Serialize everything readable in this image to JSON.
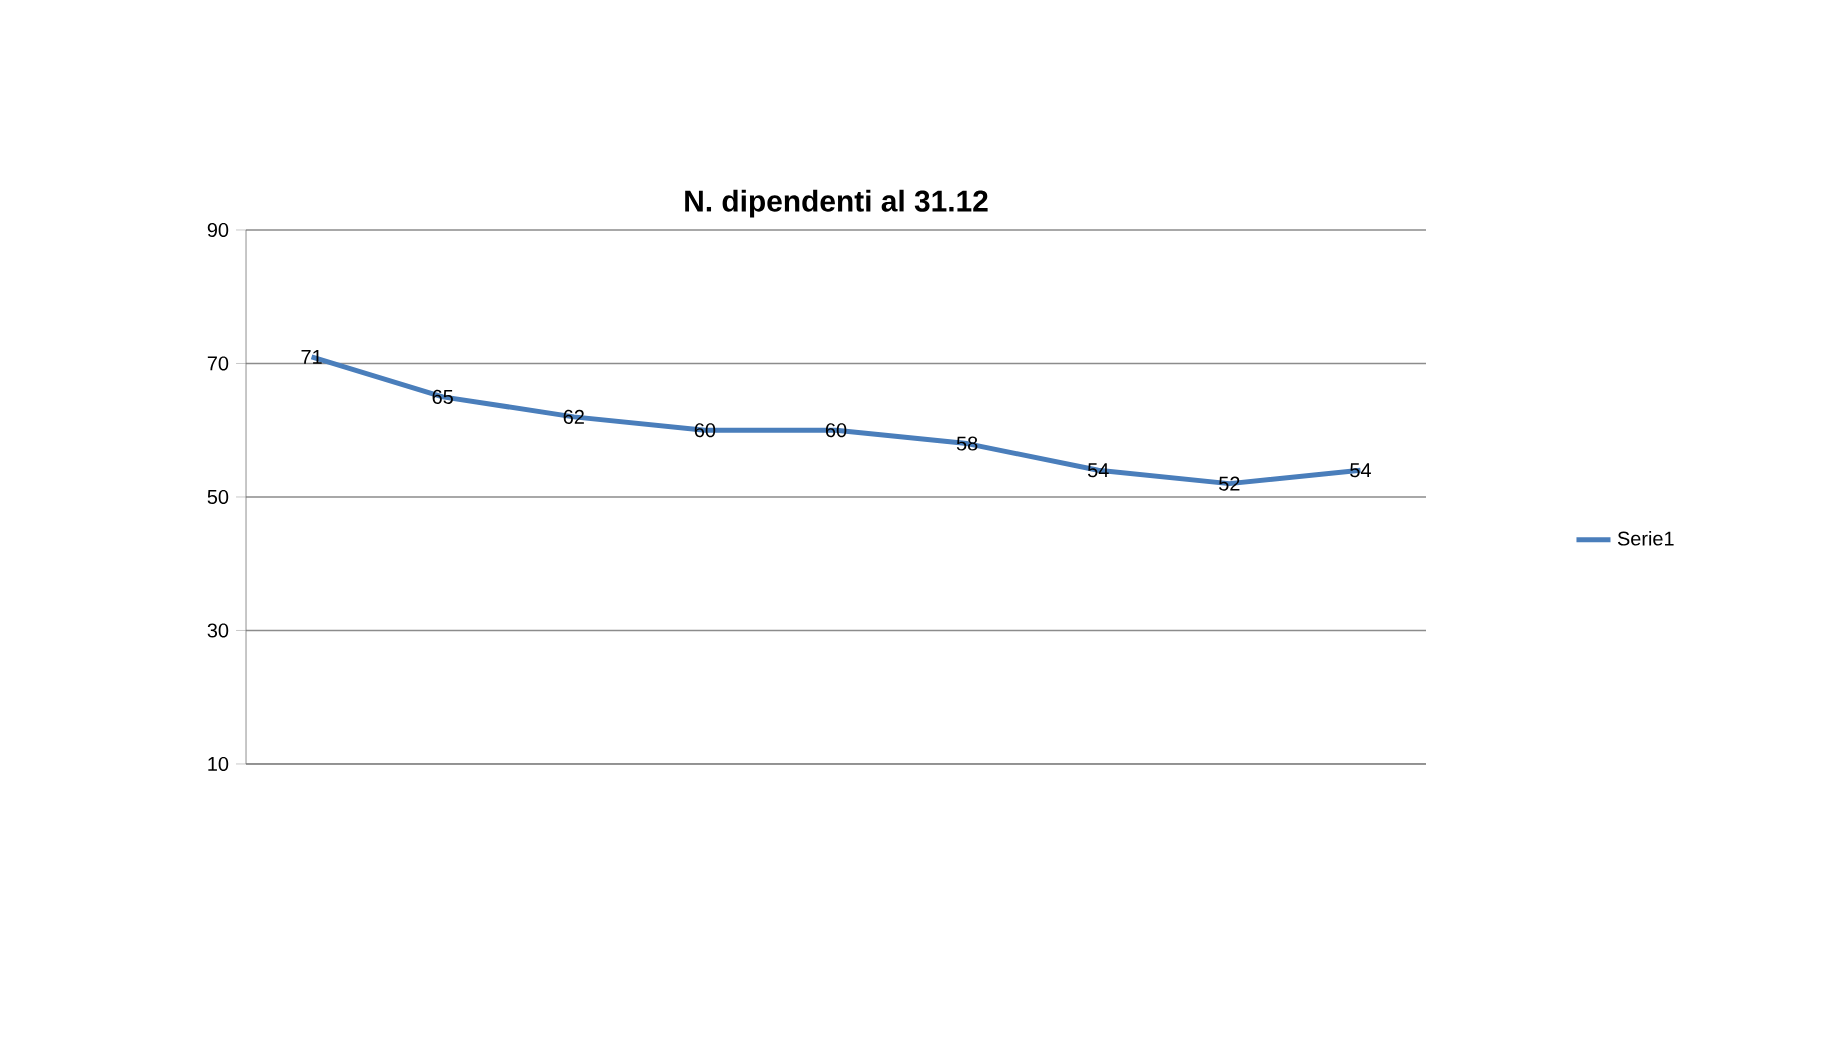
{
  "chart_data": {
    "type": "line",
    "title": "N. dipendenti al 31.12",
    "categories": [
      null,
      null,
      null,
      null,
      null,
      null,
      null,
      null,
      null
    ],
    "series": [
      {
        "name": "Serie1",
        "color": "#4a7ebb",
        "values": [
          71,
          65,
          62,
          60,
          60,
          58,
          54,
          52,
          54
        ]
      }
    ],
    "ylim": [
      10,
      90
    ],
    "yticks": [
      10,
      30,
      50,
      70,
      90
    ],
    "grid": "y",
    "legend": "right",
    "data_labels": true,
    "marker": "none",
    "line_style": "solid"
  }
}
